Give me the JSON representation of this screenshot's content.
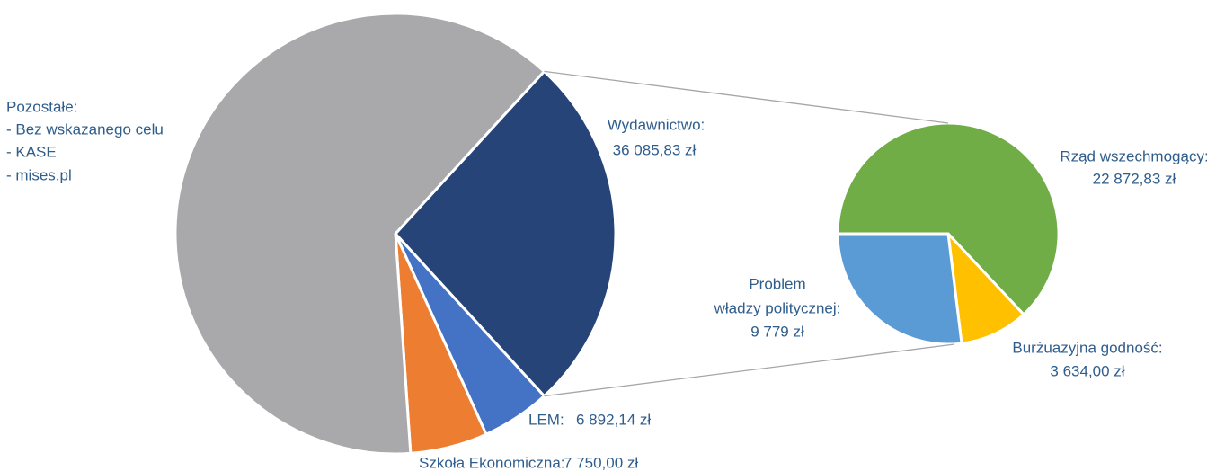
{
  "chart_data": [
    {
      "type": "pie",
      "categories": [
        [
          "Wydawnictwo:"
        ],
        [
          "LEM:"
        ],
        [
          "Szkoła Ekonomiczna:"
        ],
        [
          "Pozostałe:",
          "- Bez wskazanego celu",
          "- KASE",
          "- mises.pl"
        ]
      ],
      "values": [
        36085.83,
        6892.14,
        7750.0,
        86000
      ],
      "value_labels": [
        "36 085,83 zł",
        "6 892,14 zł",
        "7 750,00 zł",
        null
      ],
      "colors": [
        "#264478",
        "#4472c4",
        "#ed7d31",
        "#a9a9ac"
      ]
    },
    {
      "type": "pie",
      "categories": [
        [
          "Rząd wszechmogący:"
        ],
        [
          "Burżuazyjna godność:"
        ],
        [
          "Problem",
          "władzy politycznej:"
        ]
      ],
      "values": [
        22872.83,
        3634.0,
        9779
      ],
      "value_labels": [
        "22 872,83 zł",
        "3 634,00 zł",
        "9 779 zł"
      ],
      "colors": [
        "#70ad47",
        "#ffc000",
        "#5b9bd5"
      ]
    }
  ]
}
